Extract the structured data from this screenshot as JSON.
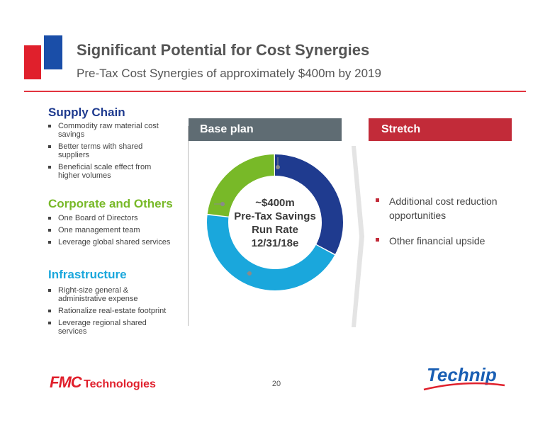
{
  "header": {
    "title": "Significant Potential for Cost Synergies",
    "subtitle": "Pre-Tax Cost Synergies of approximately $400m by 2019"
  },
  "sections": {
    "supply_chain": {
      "title": "Supply Chain",
      "bullets": [
        "Commodity raw material cost savings",
        "Better terms with shared suppliers",
        "Beneficial scale effect from higher volumes"
      ]
    },
    "corporate": {
      "title": "Corporate and Others",
      "bullets": [
        "One Board of Directors",
        "One management team",
        "Leverage global shared services"
      ]
    },
    "infrastructure": {
      "title": "Infrastructure",
      "bullets": [
        "Right-size general & administrative expense",
        "Rationalize real-estate footprint",
        "Leverage regional shared services"
      ]
    }
  },
  "base_plan": {
    "label": "Base plan",
    "center_lines": [
      "~$400m",
      "Pre-Tax Savings",
      "Run Rate",
      "12/31/18e"
    ]
  },
  "stretch": {
    "label": "Stretch",
    "bullets": [
      "Additional cost reduction opportunities",
      "Other financial upside"
    ]
  },
  "footer": {
    "page_number": "20",
    "fmc_logo": {
      "mark": "FMC",
      "word": "Technologies"
    },
    "technip_logo": "Technip"
  },
  "colors": {
    "accent_red": "#e2343f",
    "supply_chain_blue": "#1f3b8f",
    "corporate_green": "#78b928",
    "infrastructure_cyan": "#1aa7dc",
    "base_plan_gray": "#5f6c73",
    "stretch_red": "#c22b39"
  },
  "donut_segments": [
    {
      "section": "supply_chain",
      "color": "#1f3b8f",
      "share": 0.33
    },
    {
      "section": "infrastructure",
      "color": "#1aa7dc",
      "share": 0.44
    },
    {
      "section": "corporate",
      "color": "#78b928",
      "share": 0.23
    }
  ]
}
